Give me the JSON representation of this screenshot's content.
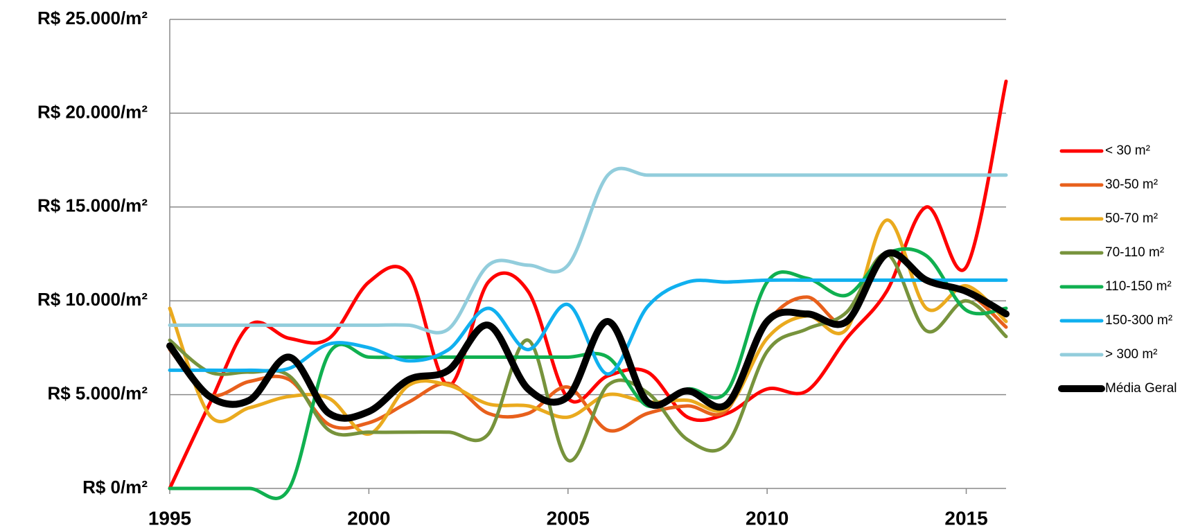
{
  "chart_data": {
    "type": "line",
    "x": [
      1995,
      1996,
      1997,
      1998,
      1999,
      2000,
      2001,
      2002,
      2003,
      2004,
      2005,
      2006,
      2007,
      2008,
      2009,
      2010,
      2011,
      2012,
      2013,
      2014,
      2015,
      2016
    ],
    "xlim": [
      1995,
      2016
    ],
    "xticks": [
      1995,
      2000,
      2005,
      2010,
      2015
    ],
    "ylim": [
      0,
      25000
    ],
    "yticks": [
      {
        "value": 0,
        "label": "R$ 0/m²"
      },
      {
        "value": 5000,
        "label": "R$ 5.000/m²"
      },
      {
        "value": 10000,
        "label": "R$ 10.000/m²"
      },
      {
        "value": 15000,
        "label": "R$ 15.000/m²"
      },
      {
        "value": 20000,
        "label": "R$ 20.000/m²"
      },
      {
        "value": 25000,
        "label": "R$ 25.000/m²"
      }
    ],
    "grid": true,
    "legend": "right",
    "series": [
      {
        "name": "< 30 m²",
        "color": "#ff0000",
        "values": [
          0,
          4500,
          8700,
          8000,
          8000,
          11000,
          11400,
          5500,
          11000,
          10500,
          4800,
          6000,
          6200,
          3800,
          4000,
          5300,
          5200,
          8000,
          10500,
          15000,
          11800,
          21700
        ]
      },
      {
        "name": "30-50 m²",
        "color": "#e8601c",
        "values": [
          7400,
          5000,
          5700,
          5800,
          3400,
          3500,
          4600,
          5600,
          4000,
          4000,
          5400,
          3100,
          4000,
          4400,
          4200,
          8800,
          10200,
          8800,
          12500,
          11000,
          10500,
          8600
        ]
      },
      {
        "name": "50-70 m²",
        "color": "#eaaa1e",
        "values": [
          9600,
          3900,
          4300,
          4900,
          4800,
          2900,
          5500,
          5500,
          4500,
          4400,
          3800,
          5000,
          4600,
          4700,
          4300,
          8000,
          9200,
          8500,
          14300,
          9600,
          10800,
          8900
        ]
      },
      {
        "name": "70-110 m²",
        "color": "#77933c",
        "values": [
          7900,
          6200,
          6200,
          6000,
          3100,
          3000,
          3000,
          3000,
          2900,
          7900,
          1500,
          5500,
          5100,
          2600,
          2400,
          7300,
          8500,
          9400,
          12500,
          8400,
          10000,
          8100
        ]
      },
      {
        "name": "110-150 m²",
        "color": "#10b050",
        "values": [
          0,
          0,
          0,
          0,
          7200,
          7000,
          7000,
          7000,
          7000,
          7000,
          7000,
          7000,
          4400,
          5300,
          5200,
          11000,
          11200,
          10300,
          12500,
          12400,
          9500,
          9600
        ]
      },
      {
        "name": "150-300 m²",
        "color": "#10b0ef",
        "values": [
          6300,
          6300,
          6300,
          6400,
          7700,
          7500,
          6800,
          7400,
          9600,
          7400,
          9800,
          6100,
          9700,
          11000,
          11000,
          11100,
          11100,
          11100,
          11100,
          11100,
          11100,
          11100
        ]
      },
      {
        "name": "> 300 m²",
        "color": "#92cddc",
        "values": [
          8700,
          8700,
          8700,
          8700,
          8700,
          8700,
          8700,
          8500,
          11900,
          11900,
          11900,
          16700,
          16700,
          16700,
          16700,
          16700,
          16700,
          16700,
          16700,
          16700,
          16700,
          16700
        ]
      },
      {
        "name": "Média Geral",
        "color": "#000000",
        "values": [
          7600,
          4900,
          4700,
          7000,
          4000,
          4100,
          5800,
          6300,
          8700,
          5300,
          4900,
          8900,
          4600,
          5200,
          4500,
          8900,
          9300,
          8900,
          12500,
          11100,
          10500,
          9300
        ]
      }
    ]
  }
}
